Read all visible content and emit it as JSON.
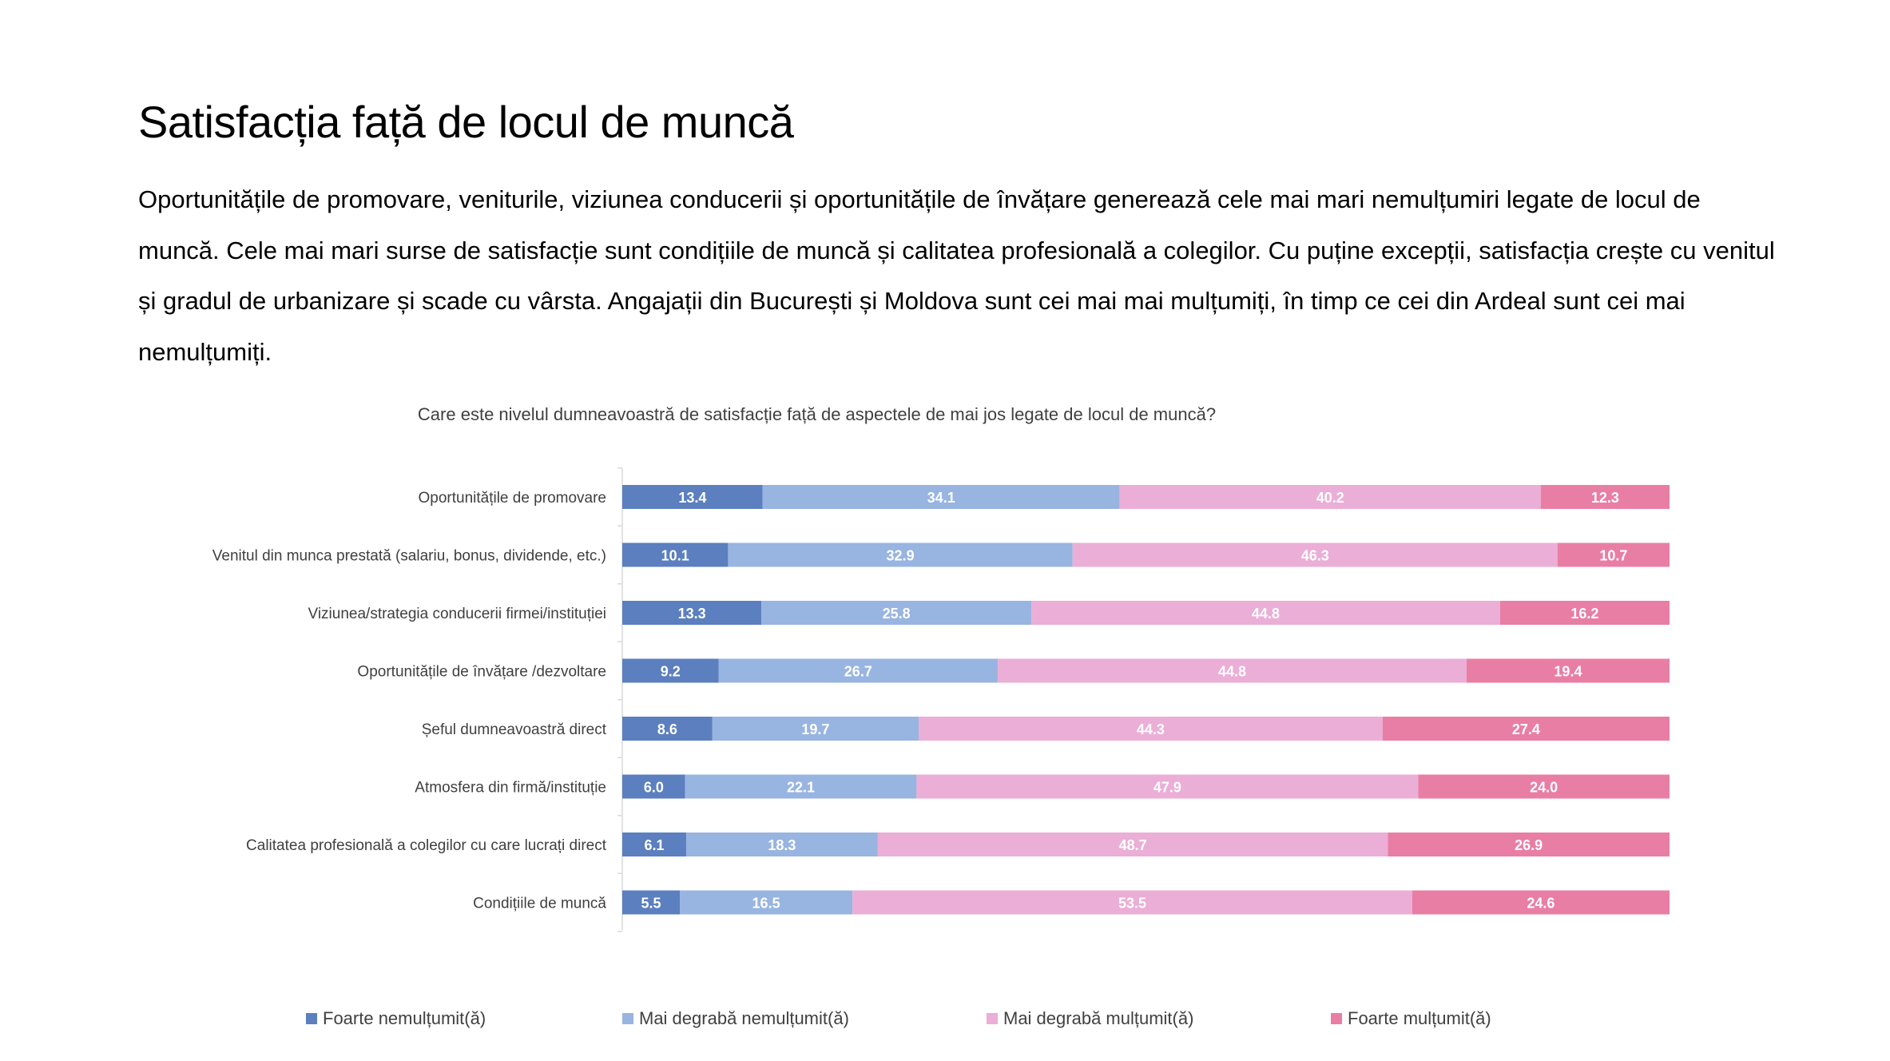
{
  "slide": {
    "title": "Satisfacția față de locul de muncă",
    "body": "Oportunitățile de promovare, veniturile, viziunea conducerii și oportunitățile de învățare generează cele mai mari nemulțumiri legate de locul de muncă. Cele mai mari surse de satisfacție sunt condițiile de muncă și calitatea profesională a colegilor. Cu puține excepții, satisfacția crește cu venitul și gradul de urbanizare și scade cu vârsta. Angajații din București și Moldova sunt cei mai mai mulțumiți, în timp ce cei din Ardeal sunt cei mai nemulțumiți."
  },
  "chart_data": {
    "type": "bar",
    "orientation": "horizontal",
    "stacked": "100%",
    "title": "Care este nivelul dumneavoastră de satisfacție față de aspectele de mai jos legate de locul de muncă?",
    "categories": [
      "Oportunitățile de promovare",
      "Venitul din munca prestată (salariu, bonus, dividende, etc.)",
      "Viziunea/strategia conducerii firmei/instituției",
      "Oportunitățile de învățare /dezvoltare",
      "Șeful dumneavoastră direct",
      "Atmosfera din firmă/instituție",
      "Calitatea profesională a colegilor cu care lucrați direct",
      "Condițiile de muncă"
    ],
    "series": [
      {
        "name": "Foarte nemulțumit(ă)",
        "color": "#5b7fbf",
        "values": [
          13.4,
          10.1,
          13.3,
          9.2,
          8.6,
          6.0,
          6.1,
          5.5
        ],
        "labels": [
          "13.4",
          "10.1",
          "13.3",
          "9.2",
          "8.6",
          "6.0",
          "6.1",
          "5.5"
        ]
      },
      {
        "name": "Mai degrabă nemulțumit(ă)",
        "color": "#98b4e1",
        "values": [
          34.1,
          32.9,
          25.8,
          26.7,
          19.7,
          22.1,
          18.3,
          16.5
        ],
        "labels": [
          "34.1",
          "32.9",
          "25.8",
          "26.7",
          "19.7",
          "22.1",
          "18.3",
          "16.5"
        ]
      },
      {
        "name": "Mai degrabă mulțumit(ă)",
        "color": "#ebaed6",
        "values": [
          40.2,
          46.3,
          44.8,
          44.8,
          44.3,
          47.9,
          48.7,
          53.5
        ],
        "labels": [
          "40.2",
          "46.3",
          "44.8",
          "44.8",
          "44.3",
          "47.9",
          "48.7",
          "53.5"
        ]
      },
      {
        "name": "Foarte mulțumit(ă)",
        "color": "#e97ea4",
        "values": [
          12.3,
          10.7,
          16.2,
          19.4,
          27.4,
          24.0,
          26.9,
          24.6
        ],
        "labels": [
          "12.3",
          "10.7",
          "16.2",
          "19.4",
          "27.4",
          "24.0",
          "26.9",
          "24.6"
        ]
      }
    ],
    "legend_position": "bottom",
    "grid": false,
    "data_labels": true
  }
}
